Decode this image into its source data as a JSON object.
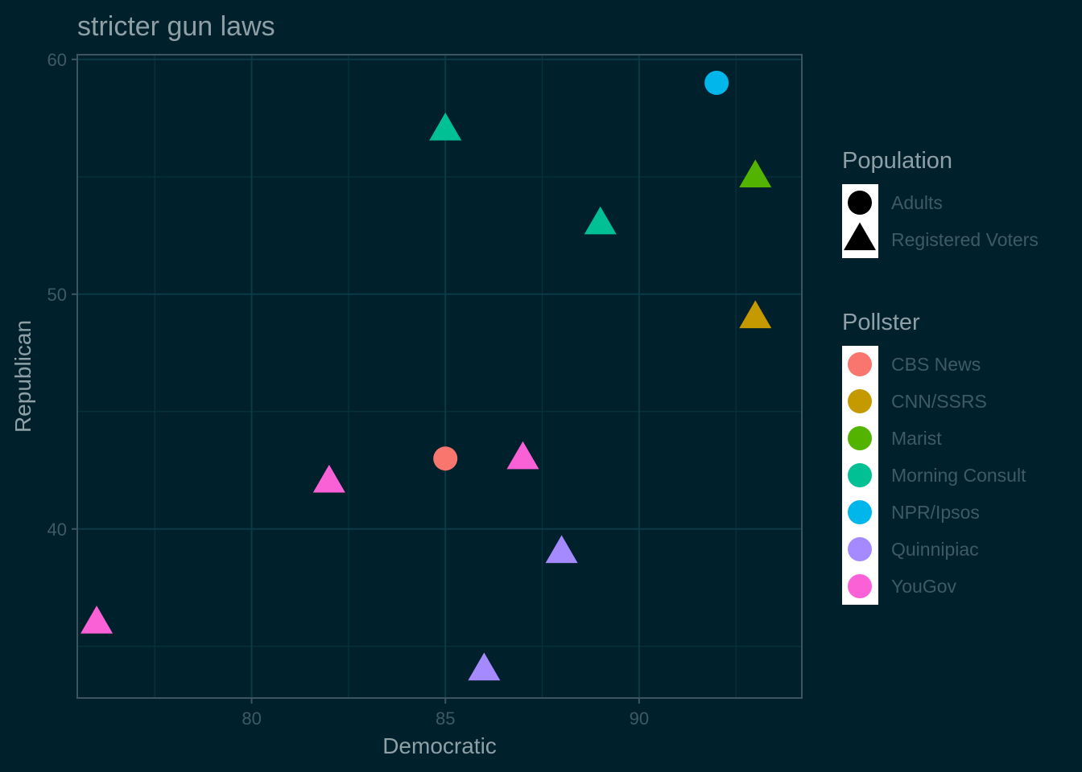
{
  "chart_data": {
    "type": "scatter",
    "title": "stricter gun laws",
    "xlabel": "Democratic",
    "ylabel": "Republican",
    "xlim": [
      75.5,
      94.2
    ],
    "ylim": [
      32.8,
      60.2
    ],
    "x_ticks": [
      80,
      85,
      90
    ],
    "y_ticks": [
      40,
      50,
      60
    ],
    "x_tick_labels": [
      "80",
      "85",
      "90"
    ],
    "y_tick_labels": [
      "40",
      "50",
      "60"
    ],
    "grid": true,
    "legend_position": "right",
    "legends": {
      "population": {
        "title": "Population",
        "entries": [
          {
            "label": "Adults",
            "shape": "circle"
          },
          {
            "label": "Registered Voters",
            "shape": "triangle"
          }
        ]
      },
      "pollster": {
        "title": "Pollster",
        "entries": [
          {
            "label": "CBS News",
            "color": "#f8766d"
          },
          {
            "label": "CNN/SSRS",
            "color": "#c49a00"
          },
          {
            "label": "Marist",
            "color": "#53b400"
          },
          {
            "label": "Morning Consult",
            "color": "#00c094"
          },
          {
            "label": "NPR/Ipsos",
            "color": "#00b6eb"
          },
          {
            "label": "Quinnipiac",
            "color": "#a58aff"
          },
          {
            "label": "YouGov",
            "color": "#fb61d7"
          }
        ]
      }
    },
    "points": [
      {
        "pollster": "NPR/Ipsos",
        "population": "Adults",
        "x": 92,
        "y": 59
      },
      {
        "pollster": "Morning Consult",
        "population": "Registered Voters",
        "x": 85,
        "y": 57
      },
      {
        "pollster": "Marist",
        "population": "Registered Voters",
        "x": 93,
        "y": 55
      },
      {
        "pollster": "Morning Consult",
        "population": "Registered Voters",
        "x": 89,
        "y": 53
      },
      {
        "pollster": "CNN/SSRS",
        "population": "Registered Voters",
        "x": 93,
        "y": 49
      },
      {
        "pollster": "CBS News",
        "population": "Adults",
        "x": 85,
        "y": 43
      },
      {
        "pollster": "YouGov",
        "population": "Registered Voters",
        "x": 87,
        "y": 43
      },
      {
        "pollster": "YouGov",
        "population": "Registered Voters",
        "x": 82,
        "y": 42
      },
      {
        "pollster": "Quinnipiac",
        "population": "Registered Voters",
        "x": 88,
        "y": 39
      },
      {
        "pollster": "YouGov",
        "population": "Registered Voters",
        "x": 76,
        "y": 36
      },
      {
        "pollster": "Quinnipiac",
        "population": "Registered Voters",
        "x": 86,
        "y": 34
      }
    ]
  }
}
